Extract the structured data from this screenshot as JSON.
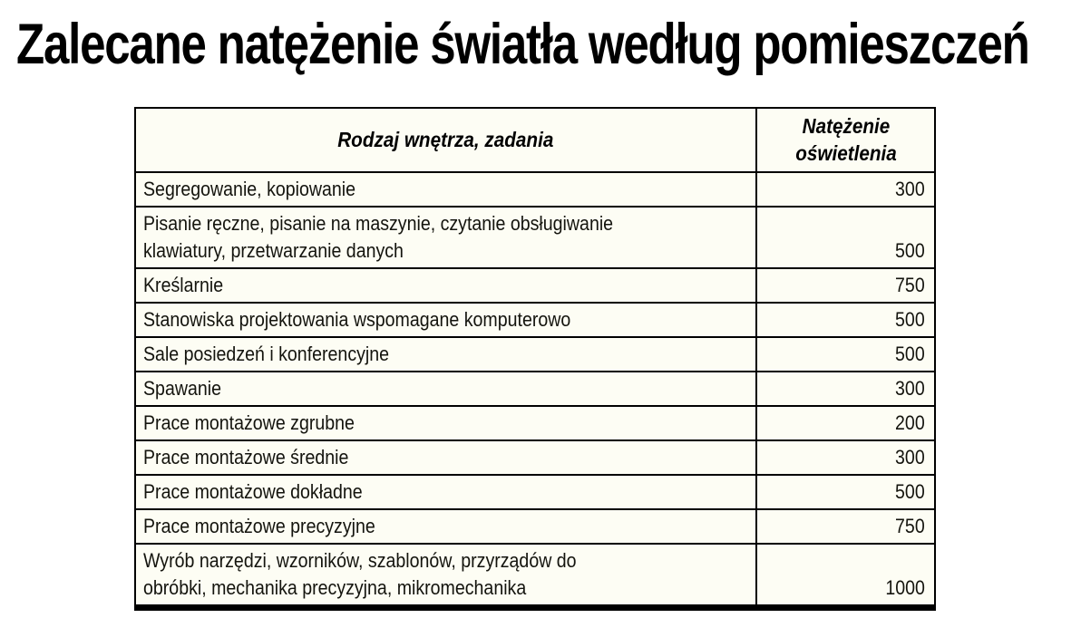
{
  "page": {
    "title": "Zalecane natężenie światła według pomieszczeń"
  },
  "table": {
    "headers": {
      "task": "Rodzaj wnętrza, zadania",
      "value": "Natężenie\noświetlenia"
    },
    "rows": [
      {
        "task": "Segregowanie, kopiowanie",
        "value": "300"
      },
      {
        "task": "Pisanie ręczne, pisanie na maszynie, czytanie obsługiwanie\nklawiatury, przetwarzanie danych",
        "value": "500"
      },
      {
        "task": "Kreślarnie",
        "value": "750"
      },
      {
        "task": "Stanowiska projektowania wspomagane komputerowo",
        "value": "500"
      },
      {
        "task": "Sale posiedzeń i konferencyjne",
        "value": "500"
      },
      {
        "task": "Spawanie",
        "value": "300"
      },
      {
        "task": "Prace montażowe zgrubne",
        "value": "200"
      },
      {
        "task": "Prace montażowe średnie",
        "value": "300"
      },
      {
        "task": "Prace montażowe dokładne",
        "value": "500"
      },
      {
        "task": "Prace montażowe precyzyjne",
        "value": "750"
      },
      {
        "task": "Wyrób narzędzi, wzorników, szablonów, przyrządów do\nobróbki, mechanika precyzyjna, mikromechanika",
        "value": "1000"
      }
    ]
  },
  "colors": {
    "background": "#ffffff",
    "cell_background": "#fdfdf4",
    "border": "#000000",
    "text": "#14140e",
    "title_text": "#000000"
  }
}
